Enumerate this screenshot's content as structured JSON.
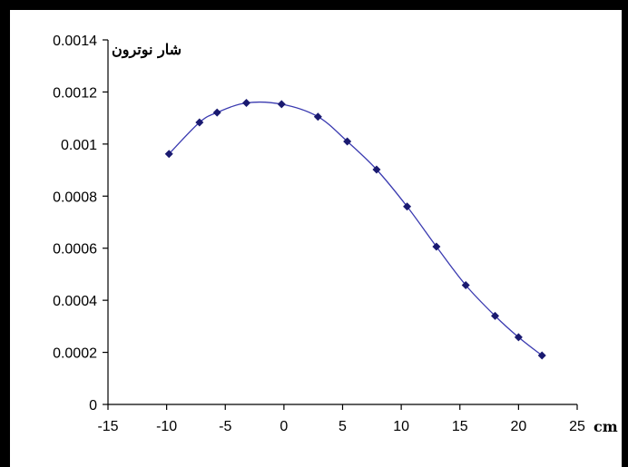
{
  "chart_data": {
    "type": "line",
    "title": "",
    "xlabel": "cm",
    "ylabel": "شار نوترون",
    "xlim": [
      -15,
      25
    ],
    "ylim": [
      0,
      0.0014
    ],
    "x_ticks": [
      -15,
      -10,
      -5,
      0,
      5,
      10,
      15,
      20,
      25
    ],
    "x_tick_labels": [
      "-15",
      "-10",
      "-5",
      "0",
      "5",
      "10",
      "15",
      "20",
      "25"
    ],
    "y_ticks": [
      0,
      0.0002,
      0.0004,
      0.0006,
      0.0008,
      0.001,
      0.0012,
      0.0014
    ],
    "y_tick_labels": [
      "0",
      "0.0002",
      "0.0004",
      "0.0006",
      "0.0008",
      "0.001",
      "0.0012",
      "0.0014"
    ],
    "grid": false,
    "legend": "none",
    "line_color": "#3a3ab0",
    "marker_color": "#1a1a70",
    "marker": "diamond",
    "smooth": true,
    "series": [
      {
        "x": [
          -9.8,
          -7.2,
          -5.7,
          -3.2,
          -0.2,
          2.9,
          5.4,
          7.9,
          10.5,
          13.0,
          15.5,
          18.0,
          20.0,
          22.0
        ],
        "y": [
          0.000962,
          0.001083,
          0.001121,
          0.001158,
          0.001153,
          0.001105,
          0.00101,
          0.000902,
          0.00076,
          0.000606,
          0.000458,
          0.00034,
          0.000258,
          0.000188
        ]
      }
    ]
  }
}
